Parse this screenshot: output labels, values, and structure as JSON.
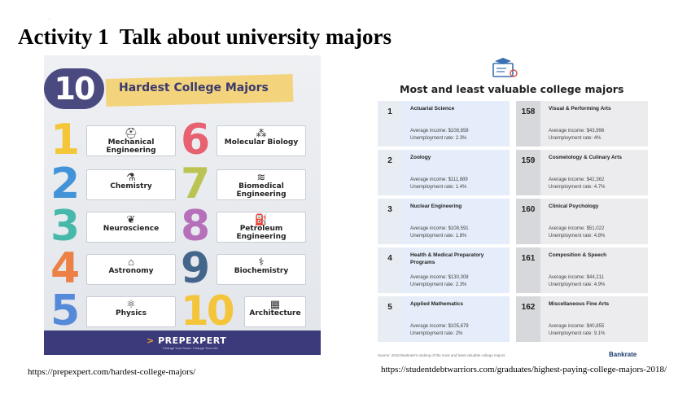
{
  "slide": {
    "title": "Activity 1  Talk about university majors",
    "dot": "."
  },
  "poster": {
    "big_number": "10",
    "title": "Hardest College Majors",
    "items": [
      {
        "rank": "1",
        "label": "Mechanical Engineering",
        "icon": "helmet-icon",
        "color": "#f5c431"
      },
      {
        "rank": "2",
        "label": "Chemistry",
        "icon": "flask-icon",
        "color": "#3a8fd6"
      },
      {
        "rank": "3",
        "label": "Neuroscience",
        "icon": "brain-icon",
        "color": "#3fb7a8"
      },
      {
        "rank": "4",
        "label": "Astronomy",
        "icon": "observatory-icon",
        "color": "#ee7b3d"
      },
      {
        "rank": "5",
        "label": "Physics",
        "icon": "atom-icon",
        "color": "#4d86d8"
      },
      {
        "rank": "6",
        "label": "Molecular Biology",
        "icon": "molecule-icon",
        "color": "#e85a6a"
      },
      {
        "rank": "7",
        "label": "Biomedical Engineering",
        "icon": "dna-icon",
        "color": "#b9c24a"
      },
      {
        "rank": "8",
        "label": "Petroleum Engineering",
        "icon": "oil-pump-icon",
        "color": "#b46ab8"
      },
      {
        "rank": "9",
        "label": "Biochemistry",
        "icon": "microscope-icon",
        "color": "#3c5f86"
      },
      {
        "rank": "10",
        "label": "Architecture",
        "icon": "blueprint-icon",
        "color": "#f5c431"
      }
    ],
    "brand": "PREPEXPERT",
    "brand_mark": ">",
    "tagline": "Change Your Score. Change Your Life",
    "colors": {
      "header_circle": "#4b4a80",
      "tape": "#f3d37c",
      "footer": "#3b3a7a"
    }
  },
  "url_left": "https://prepexpert.com/hardest-college-majors/",
  "infographic": {
    "title": "Most and least valuable college majors",
    "icon": "graduation-certificate-icon",
    "income_label": "Average income:",
    "unemployment_label": "Unemployment rate:",
    "most": [
      {
        "rank": "1",
        "major": "Actuarial Science",
        "income": "$108,658",
        "unemployment": "2.3%"
      },
      {
        "rank": "2",
        "major": "Zoology",
        "income": "$111,889",
        "unemployment": "1.4%"
      },
      {
        "rank": "3",
        "major": "Nuclear Engineering",
        "income": "$108,591",
        "unemployment": "1.8%"
      },
      {
        "rank": "4",
        "major": "Health & Medical Preparatory Programs",
        "income": "$130,308",
        "unemployment": "2.3%"
      },
      {
        "rank": "5",
        "major": "Applied Mathematics",
        "income": "$105,679",
        "unemployment": "2%"
      }
    ],
    "least": [
      {
        "rank": "158",
        "major": "Visual & Performing Arts",
        "income": "$43,996",
        "unemployment": "4%"
      },
      {
        "rank": "159",
        "major": "Cosmetology & Culinary Arts",
        "income": "$42,362",
        "unemployment": "4.7%"
      },
      {
        "rank": "160",
        "major": "Clinical Psychology",
        "income": "$51,022",
        "unemployment": "4.8%"
      },
      {
        "rank": "161",
        "major": "Composition & Speech",
        "income": "$44,211",
        "unemployment": "4.9%"
      },
      {
        "rank": "162",
        "major": "Miscellaneous Fine Arts",
        "income": "$40,855",
        "unemployment": "9.1%"
      }
    ],
    "source": "Source: 2018 Bankrate's ranking of the most and least valuable college majors",
    "brand": "Bankrate"
  },
  "url_right": "https://studentdebtwarriors.com/graduates/highest-paying-college-majors-2018/"
}
